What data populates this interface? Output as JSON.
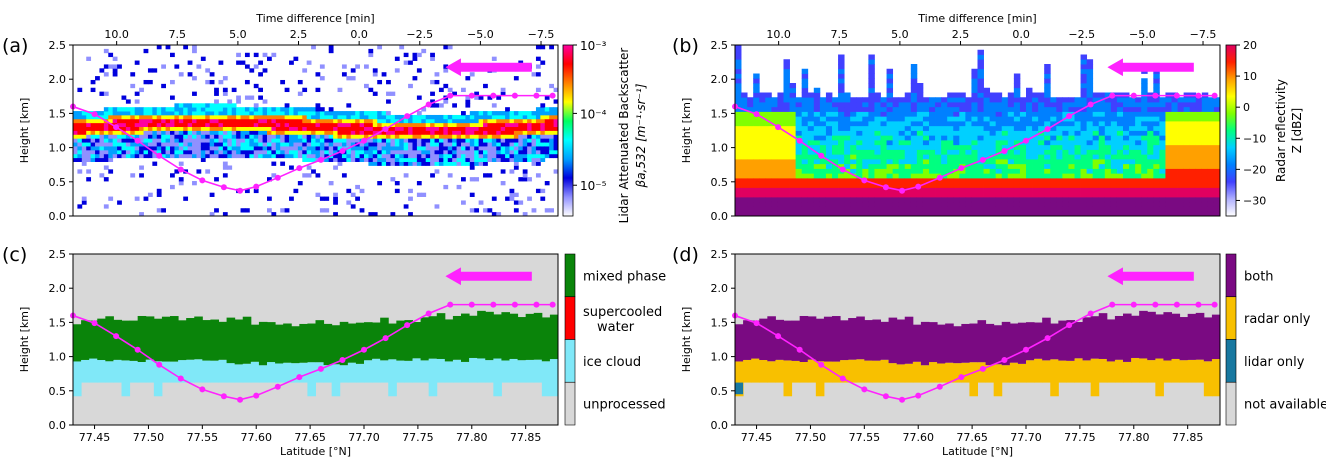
{
  "chart_data": [
    {
      "id": "a",
      "panel_label": "(a)",
      "type": "heatmap",
      "xlabel": "",
      "ylabel": "Height [km]",
      "top_xlabel": "Time difference [min]",
      "top_ticks": [
        "10.0",
        "7.5",
        "5.0",
        "2.5",
        "0.0",
        "−2.5",
        "−5.0",
        "−7.5"
      ],
      "y_ticks": [
        "0.0",
        "0.5",
        "1.0",
        "1.5",
        "2.0",
        "2.5"
      ],
      "ylim": [
        0,
        2.5
      ],
      "xlim": [
        77.43,
        77.88
      ],
      "colorbar": {
        "label_line1": "Lidar Attenuated Backscatter",
        "label_line2": "βa,532 [m⁻¹·sr⁻¹]",
        "scale": "log",
        "ticks": [
          "10⁻³",
          "10⁻⁴",
          "10⁻⁵"
        ],
        "colors": [
          "#ffffff",
          "#9090ff",
          "#0000dd",
          "#00a0ff",
          "#00ffff",
          "#00ff60",
          "#ffff00",
          "#ff8000",
          "#ff0000",
          "#ff00a0"
        ]
      },
      "flight_track": {
        "latitude": [
          77.43,
          77.45,
          77.47,
          77.49,
          77.51,
          77.53,
          77.55,
          77.57,
          77.585,
          77.6,
          77.62,
          77.64,
          77.66,
          77.68,
          77.7,
          77.72,
          77.74,
          77.76,
          77.78,
          77.8,
          77.82,
          77.84,
          77.86,
          77.875
        ],
        "height_km": [
          1.6,
          1.49,
          1.3,
          1.1,
          0.88,
          0.68,
          0.52,
          0.42,
          0.37,
          0.43,
          0.56,
          0.7,
          0.82,
          0.95,
          1.1,
          1.27,
          1.46,
          1.63,
          1.76,
          1.76,
          1.76,
          1.76,
          1.76,
          1.76
        ],
        "color": "#ff22ff"
      },
      "arrow": "leftward"
    },
    {
      "id": "b",
      "panel_label": "(b)",
      "type": "heatmap",
      "xlabel": "",
      "ylabel": "Height [km]",
      "top_xlabel": "Time difference [min]",
      "top_ticks": [
        "10.0",
        "7.5",
        "5.0",
        "2.5",
        "0.0",
        "−2.5",
        "−5.0",
        "−7.5"
      ],
      "y_ticks": [
        "0.0",
        "0.5",
        "1.0",
        "1.5",
        "2.0",
        "2.5"
      ],
      "ylim": [
        0,
        2.5
      ],
      "xlim": [
        77.43,
        77.88
      ],
      "colorbar": {
        "label_line1": "Radar reflectivity",
        "label_line2": "Z [dBZ]",
        "ticks": [
          "20",
          "10",
          "0",
          "−10",
          "−20",
          "−30"
        ],
        "tick_values": [
          20,
          10,
          0,
          -10,
          -20,
          -30
        ],
        "range": [
          -35,
          20
        ],
        "colors": [
          "#ffffff",
          "#b0b0ff",
          "#4040ff",
          "#0080ff",
          "#00d0ff",
          "#00ff80",
          "#80ff00",
          "#ffff00",
          "#ffa000",
          "#ff2000",
          "#e00060"
        ]
      },
      "flight_track": {
        "latitude": [
          77.43,
          77.45,
          77.47,
          77.49,
          77.51,
          77.53,
          77.55,
          77.57,
          77.585,
          77.6,
          77.62,
          77.64,
          77.66,
          77.68,
          77.7,
          77.72,
          77.74,
          77.76,
          77.78,
          77.8,
          77.82,
          77.84,
          77.86,
          77.875
        ],
        "height_km": [
          1.6,
          1.49,
          1.3,
          1.1,
          0.88,
          0.68,
          0.52,
          0.42,
          0.37,
          0.43,
          0.56,
          0.7,
          0.82,
          0.95,
          1.1,
          1.27,
          1.46,
          1.63,
          1.76,
          1.76,
          1.76,
          1.76,
          1.76,
          1.76
        ],
        "color": "#ff22ff"
      },
      "arrow": "leftward"
    },
    {
      "id": "c",
      "panel_label": "(c)",
      "type": "heatmap",
      "xlabel": "Latitude [°N]",
      "ylabel": "Height [km]",
      "x_ticks": [
        "77.45",
        "77.50",
        "77.55",
        "77.60",
        "77.65",
        "77.70",
        "77.75",
        "77.80",
        "77.85"
      ],
      "x_tick_values": [
        77.45,
        77.5,
        77.55,
        77.6,
        77.65,
        77.7,
        77.75,
        77.8,
        77.85
      ],
      "y_ticks": [
        "0.0",
        "0.5",
        "1.0",
        "1.5",
        "2.0",
        "2.5"
      ],
      "ylim": [
        0,
        2.5
      ],
      "xlim": [
        77.43,
        77.88
      ],
      "categories": [
        {
          "label": "mixed phase",
          "color": "#0a840a"
        },
        {
          "label": "supercooled\nwater",
          "color": "#ff0000"
        },
        {
          "label": "ice cloud",
          "color": "#80e8f8"
        },
        {
          "label": "unprocessed",
          "color": "#d8d8d8"
        }
      ],
      "layers_km": {
        "unprocessed_top": 0.62,
        "ice_top": 0.95,
        "mixed_top": 1.5
      },
      "flight_track": {
        "latitude": [
          77.43,
          77.45,
          77.47,
          77.49,
          77.51,
          77.53,
          77.55,
          77.57,
          77.585,
          77.6,
          77.62,
          77.64,
          77.66,
          77.68,
          77.7,
          77.72,
          77.74,
          77.76,
          77.78,
          77.8,
          77.82,
          77.84,
          77.86,
          77.875
        ],
        "height_km": [
          1.6,
          1.49,
          1.3,
          1.1,
          0.88,
          0.68,
          0.52,
          0.42,
          0.37,
          0.43,
          0.56,
          0.7,
          0.82,
          0.95,
          1.1,
          1.27,
          1.46,
          1.63,
          1.76,
          1.76,
          1.76,
          1.76,
          1.76,
          1.76
        ],
        "color": "#ff22ff"
      },
      "arrow": "leftward"
    },
    {
      "id": "d",
      "panel_label": "(d)",
      "type": "heatmap",
      "xlabel": "Latitude [°N]",
      "ylabel": "Height [km]",
      "x_ticks": [
        "77.45",
        "77.50",
        "77.55",
        "77.60",
        "77.65",
        "77.70",
        "77.75",
        "77.80",
        "77.85"
      ],
      "x_tick_values": [
        77.45,
        77.5,
        77.55,
        77.6,
        77.65,
        77.7,
        77.75,
        77.8,
        77.85
      ],
      "y_ticks": [
        "0.0",
        "0.5",
        "1.0",
        "1.5",
        "2.0",
        "2.5"
      ],
      "ylim": [
        0,
        2.5
      ],
      "xlim": [
        77.43,
        77.88
      ],
      "categories": [
        {
          "label": "both",
          "color": "#7a0a82"
        },
        {
          "label": "radar only",
          "color": "#f8c000"
        },
        {
          "label": "lidar only",
          "color": "#1878a0"
        },
        {
          "label": "not available",
          "color": "#d8d8d8"
        }
      ],
      "layers_km": {
        "unprocessed_top": 0.62,
        "radar_only_top": 0.95,
        "both_top": 1.5
      },
      "flight_track": {
        "latitude": [
          77.43,
          77.45,
          77.47,
          77.49,
          77.51,
          77.53,
          77.55,
          77.57,
          77.585,
          77.6,
          77.62,
          77.64,
          77.66,
          77.68,
          77.7,
          77.72,
          77.74,
          77.76,
          77.78,
          77.8,
          77.82,
          77.84,
          77.86,
          77.875
        ],
        "height_km": [
          1.6,
          1.49,
          1.3,
          1.1,
          0.88,
          0.68,
          0.52,
          0.42,
          0.37,
          0.43,
          0.56,
          0.7,
          0.82,
          0.95,
          1.1,
          1.27,
          1.46,
          1.63,
          1.76,
          1.76,
          1.76,
          1.76,
          1.76,
          1.76
        ],
        "color": "#ff22ff"
      },
      "arrow": "leftward"
    }
  ]
}
